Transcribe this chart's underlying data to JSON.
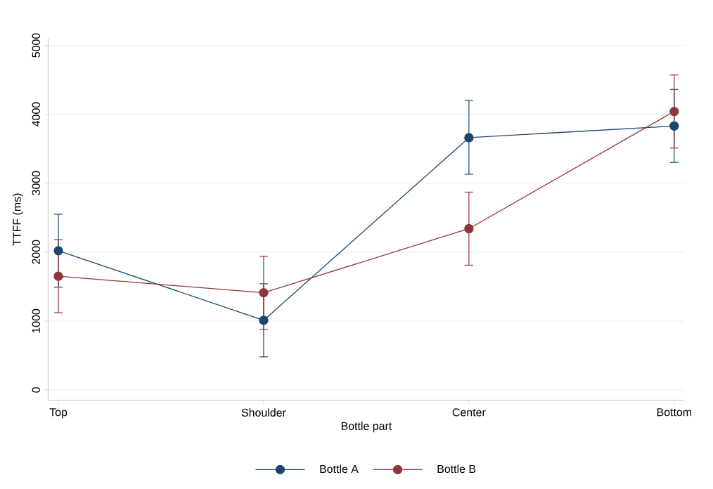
{
  "chart_data": {
    "type": "line",
    "xlabel": "Bottle part",
    "ylabel": "TTFF (ms)",
    "categories": [
      "Top",
      "Shoulder",
      "Center",
      "Bottom"
    ],
    "series": [
      {
        "name": "Bottle A",
        "color": "#1a476f",
        "values": [
          2020,
          1010,
          3660,
          3830
        ],
        "errors": [
          [
            1490,
            2550
          ],
          [
            480,
            1540
          ],
          [
            3130,
            4200
          ],
          [
            3300,
            4360
          ]
        ]
      },
      {
        "name": "Bottle B",
        "color": "#90353b",
        "values": [
          1650,
          1410,
          2340,
          4040
        ],
        "errors": [
          [
            1120,
            2180
          ],
          [
            880,
            1940
          ],
          [
            1810,
            2870
          ],
          [
            3510,
            4570
          ]
        ]
      }
    ],
    "ylim": [
      -150,
      5100
    ],
    "yticks": [
      0,
      1000,
      2000,
      3000,
      4000,
      5000
    ],
    "grid": "y",
    "legend": "bottom",
    "marker": "circle",
    "line_style": "solid"
  }
}
